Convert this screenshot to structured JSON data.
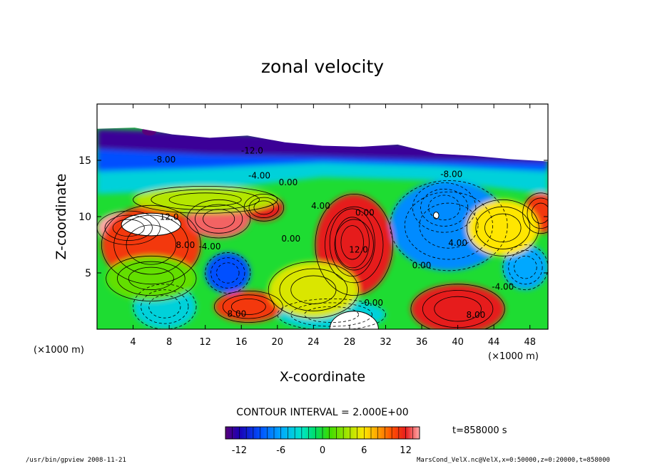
{
  "chart_data": {
    "type": "heatmap",
    "title": "zonal velocity",
    "xlabel": "X-coordinate",
    "ylabel": "Z-coordinate",
    "x_unit": "(×1000 m)",
    "y_unit": "(×1000 m)",
    "x_ticks": [
      4,
      8,
      12,
      16,
      20,
      24,
      28,
      32,
      36,
      40,
      44,
      48
    ],
    "y_ticks": [
      5,
      10,
      15
    ],
    "xlim": [
      0,
      50
    ],
    "ylim": [
      0,
      20
    ],
    "contour_interval": "CONTOUR INTERVAL = 2.000E+00",
    "time_label": "t=858000 s",
    "colorbar": {
      "range": [
        -14,
        14
      ],
      "ticks": [
        -12,
        -6,
        0,
        6,
        12
      ]
    },
    "contour_labels": [
      {
        "text": "-8.00",
        "x": 7.5,
        "y": 14.8
      },
      {
        "text": "-12.0",
        "x": 17.2,
        "y": 15.6
      },
      {
        "text": "-4.00",
        "x": 18.0,
        "y": 13.4
      },
      {
        "text": "0.00",
        "x": 21.2,
        "y": 12.8
      },
      {
        "text": "-8.00",
        "x": 39.3,
        "y": 13.5
      },
      {
        "text": "12.0",
        "x": 8.0,
        "y": 9.7
      },
      {
        "text": "8.00",
        "x": 9.8,
        "y": 7.2
      },
      {
        "text": "-4.00",
        "x": 12.5,
        "y": 7.1
      },
      {
        "text": "0.00",
        "x": 21.5,
        "y": 7.8
      },
      {
        "text": "4.00",
        "x": 24.8,
        "y": 10.7
      },
      {
        "text": "0.00",
        "x": 29.7,
        "y": 10.1
      },
      {
        "text": "12.0",
        "x": 29.0,
        "y": 6.8
      },
      {
        "text": "4.00",
        "x": 40.0,
        "y": 7.4
      },
      {
        "text": "0.00",
        "x": 36.0,
        "y": 5.4
      },
      {
        "text": "-4.00",
        "x": 45.0,
        "y": 3.5
      },
      {
        "text": "-0.00",
        "x": 30.5,
        "y": 2.1
      },
      {
        "text": "8.00",
        "x": 42.0,
        "y": 1.0
      },
      {
        "text": "8.00",
        "x": 15.5,
        "y": 1.1
      }
    ],
    "features": [
      {
        "u": -14,
        "x": 38.5,
        "y": 10.8,
        "rx": 3.5,
        "ry": 2.2
      },
      {
        "u": -9,
        "x": 14.5,
        "y": 5.0,
        "rx": 2.5,
        "ry": 1.8
      },
      {
        "u": -7,
        "x": 39,
        "y": 9.2,
        "rx": 6.5,
        "ry": 4.0
      },
      {
        "u": -6,
        "x": 47.5,
        "y": 5.5,
        "rx": 2.5,
        "ry": 2.0
      },
      {
        "u": -4,
        "x": 7.5,
        "y": 2.0,
        "rx": 3.5,
        "ry": 2.0
      },
      {
        "u": -4,
        "x": 26,
        "y": 1.3,
        "rx": 6,
        "ry": 1.4
      },
      {
        "u": 14,
        "x": 28.3,
        "y": 7.7,
        "rx": 2.5,
        "ry": 3.0
      },
      {
        "u": 12,
        "x": 28.5,
        "y": 7.5,
        "rx": 4.3,
        "ry": 4.5
      },
      {
        "u": 14,
        "x": 3.5,
        "y": 9.0,
        "rx": 3.5,
        "ry": 1.5
      },
      {
        "u": 11,
        "x": 6,
        "y": 7.5,
        "rx": 5.5,
        "ry": 3.5
      },
      {
        "u": 13,
        "x": 13.5,
        "y": 9.8,
        "rx": 3.5,
        "ry": 1.7
      },
      {
        "u": 12,
        "x": 18.5,
        "y": 10.8,
        "rx": 2.2,
        "ry": 1.2
      },
      {
        "u": 12,
        "x": 40,
        "y": 1.8,
        "rx": 5.2,
        "ry": 2.2
      },
      {
        "u": 11,
        "x": 16.8,
        "y": 2.0,
        "rx": 3.8,
        "ry": 1.4
      },
      {
        "u": 11,
        "x": 49.2,
        "y": 10.3,
        "rx": 2.0,
        "ry": 1.8
      },
      {
        "u": 6,
        "x": 45,
        "y": 9.0,
        "rx": 4,
        "ry": 2.5
      },
      {
        "u": 5,
        "x": 24,
        "y": 3.5,
        "rx": 5,
        "ry": 2.5
      },
      {
        "u": 4,
        "x": 12,
        "y": 11.5,
        "rx": 8,
        "ry": 1.2
      },
      {
        "u": 2,
        "x": 6,
        "y": 4.5,
        "rx": 5,
        "ry": 2.0
      }
    ],
    "upper_layers": [
      {
        "u": -4,
        "top": [
          17.5,
          17.2,
          16.8,
          16.2,
          15.5
        ],
        "bottom": [
          12.0,
          12.4,
          13.5,
          13.2,
          12.0
        ]
      },
      {
        "u": -9,
        "top": [
          17.6,
          17.4,
          16.9,
          16.3,
          15.6
        ],
        "bottom": [
          14.0,
          14.3,
          14.8,
          14.5,
          14.0
        ]
      },
      {
        "u": -13,
        "top": [
          17.8,
          17.5,
          17.0,
          16.4,
          15.7
        ],
        "bottom": [
          16.0,
          15.5,
          15.3,
          15.0,
          14.8
        ]
      }
    ],
    "top_boundary": [
      17.8,
      17.9,
      17.3,
      17.0,
      17.2,
      16.6,
      16.3,
      16.2,
      16.4,
      15.6,
      15.4,
      15.1,
      14.9
    ],
    "detached_blobs": [
      {
        "u": -14,
        "x": 30.5,
        "y": 17.8,
        "rx": 1.3,
        "ry": 0.5
      },
      {
        "u": -14,
        "x": 15.3,
        "y": 18.4,
        "rx": 0.7,
        "ry": 0.4
      },
      {
        "u": -14,
        "x": 9.5,
        "y": 18.1,
        "rx": 0.6,
        "ry": 0.4
      },
      {
        "u": -14,
        "x": 5.8,
        "y": 17.6,
        "rx": 0.8,
        "ry": 0.4
      }
    ],
    "blanks": [
      {
        "x": 6.0,
        "y": 9.3,
        "rx": 3.3,
        "ry": 1.0
      },
      {
        "x": 28.5,
        "y": 0.0,
        "rx": 2.7,
        "ry": 1.6
      },
      {
        "x": 37.6,
        "y": 10.1,
        "rx": 0.3,
        "ry": 0.3
      }
    ]
  },
  "footer": {
    "left": "/usr/bin/gpview  2008-11-21",
    "right": "MarsCond_VelX.nc@VelX,x=0:50000,z=0:20000,t=858000"
  }
}
